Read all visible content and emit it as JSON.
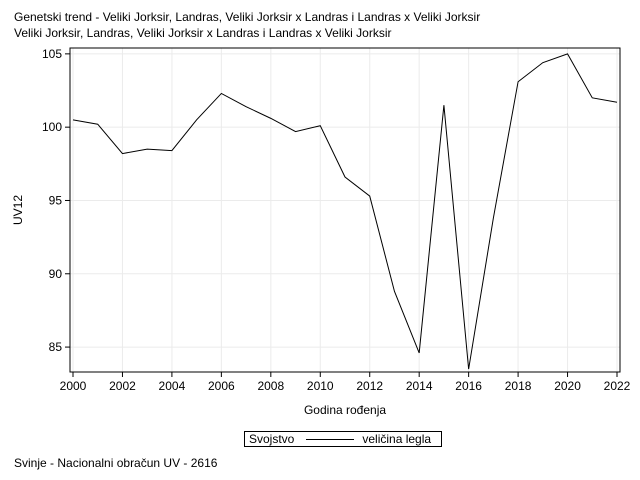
{
  "chart_data": {
    "type": "line",
    "title_lines": [
      "Genetski trend - Veliki Jorksir, Landras, Veliki Jorksir x Landras i Landras x Veliki Jorksir",
      "Veliki Jorksir, Landras, Veliki Jorksir x Landras i Landras x Veliki Jorksir"
    ],
    "xlabel": "Godina rođenja",
    "ylabel": "UV12",
    "xlim": [
      2000,
      2022
    ],
    "ylim": [
      83.3,
      105.4
    ],
    "xticks": [
      2000,
      2002,
      2004,
      2006,
      2008,
      2010,
      2012,
      2014,
      2016,
      2018,
      2020,
      2022
    ],
    "yticks": [
      85,
      90,
      95,
      100,
      105
    ],
    "grid": true,
    "legend": {
      "title": "Svojstvo",
      "placement": "bottom-center",
      "entries": [
        "veličina legla"
      ]
    },
    "series": [
      {
        "name": "veličina legla",
        "color": "#000000",
        "x": [
          2000,
          2001,
          2002,
          2003,
          2004,
          2005,
          2006,
          2007,
          2008,
          2009,
          2010,
          2011,
          2012,
          2013,
          2014,
          2015,
          2016,
          2017,
          2018,
          2019,
          2020,
          2021,
          2022
        ],
        "y": [
          100.5,
          100.2,
          98.2,
          98.5,
          98.4,
          100.5,
          102.3,
          101.4,
          100.6,
          99.7,
          100.1,
          96.6,
          95.3,
          88.8,
          84.6,
          101.5,
          83.5,
          93.8,
          103.1,
          104.4,
          105.0,
          102.0,
          101.7
        ]
      }
    ]
  },
  "footnote": "Svinje - Nacionalni obračun UV - 2616"
}
